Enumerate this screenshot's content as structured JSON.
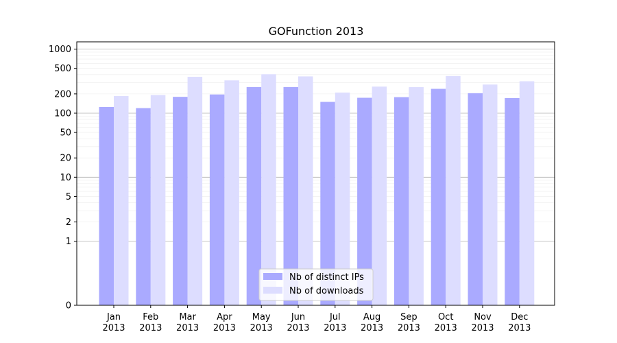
{
  "chart_data": {
    "type": "bar",
    "title": "GOFunction 2013",
    "xlabel": "",
    "ylabel": "",
    "y_scale": "symlog",
    "ylim": [
      0,
      1300
    ],
    "y_ticks": [
      0,
      1,
      2,
      5,
      10,
      20,
      50,
      100,
      200,
      500,
      1000
    ],
    "categories": [
      "Jan\n2013",
      "Feb\n2013",
      "Mar\n2013",
      "Apr\n2013",
      "May\n2013",
      "Jun\n2013",
      "Jul\n2013",
      "Aug\n2013",
      "Sep\n2013",
      "Oct\n2013",
      "Nov\n2013",
      "Dec\n2013"
    ],
    "series": [
      {
        "name": "Nb of distinct IPs",
        "color": "#aaaaff",
        "values": [
          125,
          120,
          180,
          196,
          256,
          256,
          150,
          174,
          178,
          240,
          205,
          172
        ]
      },
      {
        "name": "Nb of downloads",
        "color": "#ddddff",
        "values": [
          185,
          192,
          370,
          325,
          405,
          375,
          210,
          260,
          255,
          380,
          280,
          315
        ]
      }
    ],
    "grid": true,
    "legend_position": "bottom-center"
  }
}
